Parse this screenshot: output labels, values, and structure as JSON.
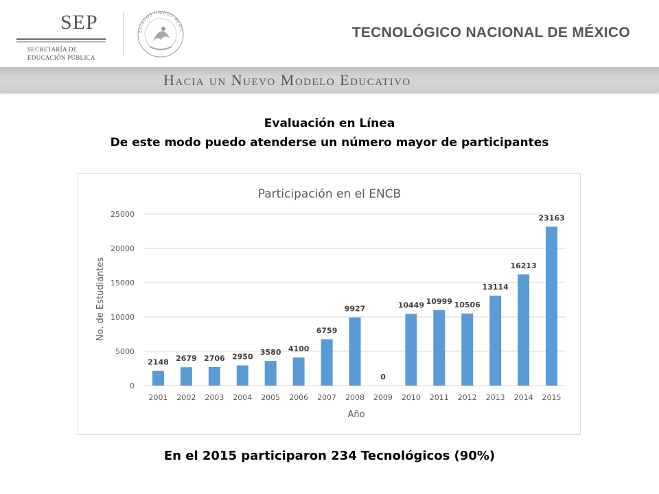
{
  "header": {
    "sep_logo_text": "SEP",
    "sep_subtitle_line1": "SECRETARÍA DE",
    "sep_subtitle_line2": "EDUCACIÓN PÚBLICA",
    "seal_text": "ESTADOS UNIDOS MEXICANOS",
    "org_name": "TECNOLÓGICO NACIONAL DE MÉXICO",
    "banner": "Hacia un Nuevo Modelo Educativo"
  },
  "slide": {
    "title_line1": "Evaluación en Línea",
    "title_line2": "De este modo puedo atenderse un número mayor de participantes",
    "footnote": "En el 2015 participaron 234 Tecnológicos (90%)"
  },
  "colors": {
    "bar": "#5b9bd5",
    "axis_text": "#595959",
    "gridline": "#d9d9d9"
  },
  "chart_data": {
    "type": "bar",
    "title": "Participación en el ENCB",
    "xlabel": "Año",
    "ylabel": "No. de Estudiantes",
    "categories": [
      "2001",
      "2002",
      "2003",
      "2004",
      "2005",
      "2006",
      "2007",
      "2008",
      "2009",
      "2010",
      "2011",
      "2012",
      "2013",
      "2014",
      "2015"
    ],
    "values": [
      2148,
      2679,
      2706,
      2950,
      3580,
      4100,
      6759,
      9927,
      0,
      10449,
      10999,
      10506,
      13114,
      16213,
      23163
    ],
    "ylim": [
      0,
      25000
    ],
    "yticks": [
      0,
      5000,
      10000,
      15000,
      20000,
      25000
    ],
    "grid": true,
    "legend": "none"
  }
}
